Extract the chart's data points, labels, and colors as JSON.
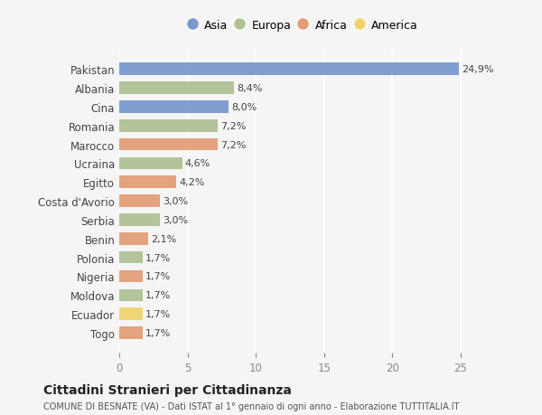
{
  "countries": [
    "Pakistan",
    "Albania",
    "Cina",
    "Romania",
    "Marocco",
    "Ucraina",
    "Egitto",
    "Costa d'Avorio",
    "Serbia",
    "Benin",
    "Polonia",
    "Nigeria",
    "Moldova",
    "Ecuador",
    "Togo"
  ],
  "values": [
    24.9,
    8.4,
    8.0,
    7.2,
    7.2,
    4.6,
    4.2,
    3.0,
    3.0,
    2.1,
    1.7,
    1.7,
    1.7,
    1.7,
    1.7
  ],
  "labels": [
    "24,9%",
    "8,4%",
    "8,0%",
    "7,2%",
    "7,2%",
    "4,6%",
    "4,2%",
    "3,0%",
    "3,0%",
    "2,1%",
    "1,7%",
    "1,7%",
    "1,7%",
    "1,7%",
    "1,7%"
  ],
  "continents": [
    "Asia",
    "Europa",
    "Asia",
    "Europa",
    "Africa",
    "Europa",
    "Africa",
    "Africa",
    "Europa",
    "Africa",
    "Europa",
    "Africa",
    "Europa",
    "America",
    "Africa"
  ],
  "colors": {
    "Asia": "#6b8fc9",
    "Europa": "#a8bc8a",
    "Africa": "#e0956b",
    "America": "#f0d060"
  },
  "legend_order": [
    "Asia",
    "Europa",
    "Africa",
    "America"
  ],
  "background_color": "#f5f5f5",
  "title": "Cittadini Stranieri per Cittadinanza",
  "subtitle": "COMUNE DI BESNATE (VA) - Dati ISTAT al 1° gennaio di ogni anno - Elaborazione TUTTITALIA.IT",
  "xlim": [
    0,
    27
  ],
  "xticks": [
    0,
    5,
    10,
    15,
    20,
    25
  ]
}
